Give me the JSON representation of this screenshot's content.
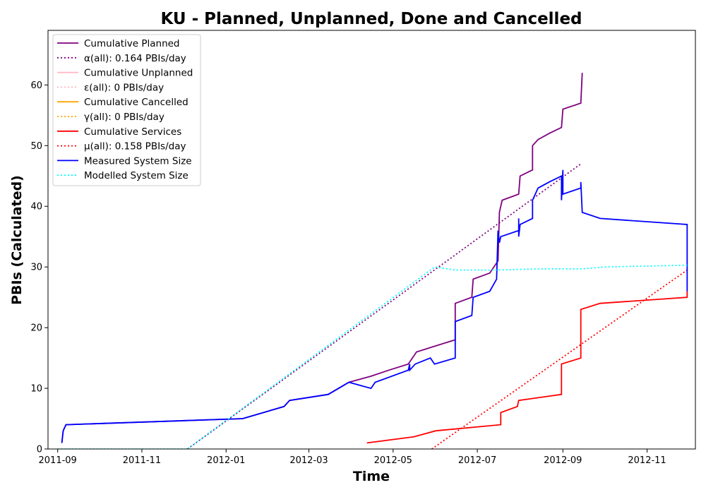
{
  "chart_data": {
    "type": "line",
    "title": "KU - Planned, Unplanned, Done  and Cancelled",
    "xlabel": "Time",
    "ylabel": "PBIs (Calculated)",
    "x_axis": {
      "type": "date",
      "min": "2011-08-25",
      "max": "2012-12-06",
      "ticks": [
        {
          "date": "2011-09-01",
          "label": "2011-09"
        },
        {
          "date": "2011-11-01",
          "label": "2011-11"
        },
        {
          "date": "2012-01-01",
          "label": "2012-01"
        },
        {
          "date": "2012-03-01",
          "label": "2012-03"
        },
        {
          "date": "2012-05-01",
          "label": "2012-05"
        },
        {
          "date": "2012-07-01",
          "label": "2012-07"
        },
        {
          "date": "2012-09-01",
          "label": "2012-09"
        },
        {
          "date": "2012-11-01",
          "label": "2012-11"
        }
      ]
    },
    "y_axis": {
      "min": 0,
      "max": 69,
      "ticks": [
        0,
        10,
        20,
        30,
        40,
        50,
        60
      ]
    },
    "grid": false,
    "legend": {
      "position": "top-left"
    },
    "series": [
      {
        "name": "Cumulative Planned",
        "color": "#800080",
        "style": "solid",
        "points": [
          [
            "2011-09-04",
            1
          ],
          [
            "2011-09-05",
            3
          ],
          [
            "2011-09-07",
            4
          ],
          [
            "2012-01-13",
            5
          ],
          [
            "2012-02-12",
            7
          ],
          [
            "2012-02-16",
            8
          ],
          [
            "2012-03-15",
            9
          ],
          [
            "2012-03-30",
            11
          ],
          [
            "2012-04-15",
            12
          ],
          [
            "2012-04-28",
            13
          ],
          [
            "2012-05-12",
            14
          ],
          [
            "2012-05-18",
            16
          ],
          [
            "2012-06-01",
            17
          ],
          [
            "2012-06-15",
            18
          ],
          [
            "2012-06-15",
            24
          ],
          [
            "2012-06-27",
            25
          ],
          [
            "2012-06-28",
            28
          ],
          [
            "2012-07-10",
            29
          ],
          [
            "2012-07-16",
            31
          ],
          [
            "2012-07-17",
            39
          ],
          [
            "2012-07-18",
            40
          ],
          [
            "2012-07-19",
            41
          ],
          [
            "2012-07-31",
            42
          ],
          [
            "2012-08-01",
            45
          ],
          [
            "2012-08-10",
            46
          ],
          [
            "2012-08-10",
            50
          ],
          [
            "2012-08-14",
            51
          ],
          [
            "2012-08-22",
            52
          ],
          [
            "2012-08-31",
            53
          ],
          [
            "2012-09-01",
            56
          ],
          [
            "2012-09-14",
            57
          ],
          [
            "2012-09-15",
            62
          ]
        ]
      },
      {
        "name": "α(all): 0.164 PBIs/day",
        "color": "#800080",
        "style": "dotted",
        "points": [
          [
            "2011-12-04",
            0
          ],
          [
            "2012-09-14",
            47
          ]
        ]
      },
      {
        "name": "Cumulative Unplanned",
        "color": "#ffb6c1",
        "style": "solid",
        "points": []
      },
      {
        "name": "ε(all): 0 PBIs/day",
        "color": "#ffb6c1",
        "style": "dotted",
        "points": []
      },
      {
        "name": "Cumulative Cancelled",
        "color": "#ffa500",
        "style": "solid",
        "points": []
      },
      {
        "name": "γ(all): 0 PBIs/day",
        "color": "#ffa500",
        "style": "dotted",
        "points": []
      },
      {
        "name": "Cumulative Services",
        "color": "#ff0000",
        "style": "solid",
        "points": [
          [
            "2012-04-12",
            1
          ],
          [
            "2012-05-16",
            2
          ],
          [
            "2012-06-01",
            3
          ],
          [
            "2012-07-18",
            4
          ],
          [
            "2012-07-18",
            6
          ],
          [
            "2012-07-30",
            7
          ],
          [
            "2012-07-31",
            8
          ],
          [
            "2012-08-31",
            9
          ],
          [
            "2012-08-31",
            14
          ],
          [
            "2012-09-14",
            15
          ],
          [
            "2012-09-14",
            23
          ],
          [
            "2012-09-28",
            24
          ],
          [
            "2012-11-30",
            25
          ],
          [
            "2012-11-30",
            26
          ]
        ]
      },
      {
        "name": "μ(all): 0.158 PBIs/day",
        "color": "#ff0000",
        "style": "dotted",
        "points": [
          [
            "2012-05-29",
            0
          ],
          [
            "2012-11-30",
            29.5
          ]
        ]
      },
      {
        "name": "Measured System Size",
        "color": "#0000ff",
        "style": "solid",
        "points": [
          [
            "2011-09-04",
            1
          ],
          [
            "2011-09-05",
            3
          ],
          [
            "2011-09-07",
            4
          ],
          [
            "2012-01-13",
            5
          ],
          [
            "2012-02-12",
            7
          ],
          [
            "2012-02-16",
            8
          ],
          [
            "2012-03-15",
            9
          ],
          [
            "2012-03-30",
            11
          ],
          [
            "2012-04-15",
            10
          ],
          [
            "2012-04-18",
            11
          ],
          [
            "2012-05-12",
            13
          ],
          [
            "2012-05-13",
            14
          ],
          [
            "2012-05-13",
            13
          ],
          [
            "2012-05-17",
            14
          ],
          [
            "2012-05-28",
            15
          ],
          [
            "2012-05-31",
            14
          ],
          [
            "2012-06-15",
            15
          ],
          [
            "2012-06-15",
            21
          ],
          [
            "2012-06-27",
            22
          ],
          [
            "2012-06-28",
            25
          ],
          [
            "2012-07-10",
            26
          ],
          [
            "2012-07-15",
            28
          ],
          [
            "2012-07-16",
            36
          ],
          [
            "2012-07-17",
            34
          ],
          [
            "2012-07-18",
            35
          ],
          [
            "2012-07-31",
            36
          ],
          [
            "2012-07-31",
            38
          ],
          [
            "2012-07-31",
            35
          ],
          [
            "2012-08-01",
            37
          ],
          [
            "2012-08-10",
            38
          ],
          [
            "2012-08-10",
            41
          ],
          [
            "2012-08-14",
            43
          ],
          [
            "2012-08-22",
            44
          ],
          [
            "2012-08-31",
            45
          ],
          [
            "2012-08-31",
            41
          ],
          [
            "2012-09-01",
            46
          ],
          [
            "2012-09-01",
            42
          ],
          [
            "2012-09-14",
            43
          ],
          [
            "2012-09-14",
            44
          ],
          [
            "2012-09-15",
            39
          ],
          [
            "2012-09-28",
            38
          ],
          [
            "2012-11-30",
            37
          ],
          [
            "2012-11-30",
            26
          ],
          [
            "2012-11-30",
            36
          ]
        ]
      },
      {
        "name": "Modelled System Size",
        "color": "#00ffff",
        "style": "dotted",
        "points": [
          [
            "2011-09-01",
            0
          ],
          [
            "2011-12-04",
            0
          ],
          [
            "2012-05-31",
            30
          ],
          [
            "2012-06-15",
            29.5
          ],
          [
            "2012-07-15",
            29.5
          ],
          [
            "2012-08-15",
            29.7
          ],
          [
            "2012-09-15",
            29.7
          ],
          [
            "2012-10-01",
            30
          ],
          [
            "2012-11-30",
            30.3
          ]
        ]
      }
    ]
  }
}
